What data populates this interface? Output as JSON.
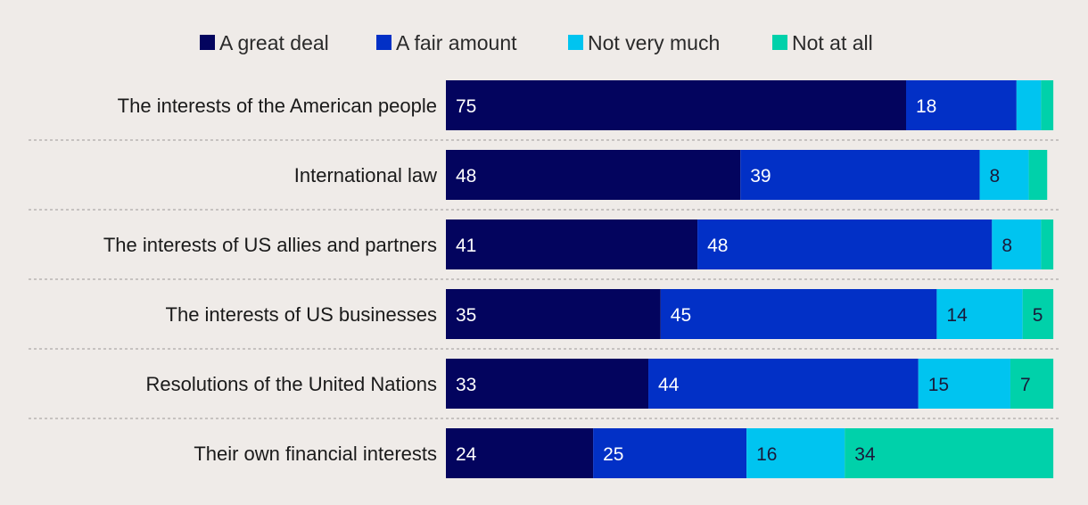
{
  "chart_data": {
    "type": "bar",
    "orientation": "horizontal",
    "stacked": true,
    "legend_position": "top-center",
    "grid": false,
    "xlim": [
      0,
      100
    ],
    "categories": [
      "The interests of the American people",
      "International law",
      "The interests of US allies and partners",
      "The interests of US businesses",
      "Resolutions of the United Nations",
      "Their own financial interests"
    ],
    "series": [
      {
        "name": "A great deal",
        "color": "#03045e",
        "label_color": "#ffffff",
        "values": [
          75,
          48,
          41,
          35,
          33,
          24
        ],
        "labels": [
          "75",
          "48",
          "41",
          "35",
          "33",
          "24"
        ]
      },
      {
        "name": "A fair amount",
        "color": "#0230c6",
        "label_color": "#ffffff",
        "values": [
          18,
          39,
          48,
          45,
          44,
          25
        ],
        "labels": [
          "18",
          "39",
          "48",
          "45",
          "44",
          "25"
        ]
      },
      {
        "name": "Not very much",
        "color": "#00c4f0",
        "label_color": "#1a1a3a",
        "values": [
          4,
          8,
          8,
          14,
          15,
          16
        ],
        "labels": [
          "",
          "8",
          "8",
          "14",
          "15",
          "16"
        ]
      },
      {
        "name": "Not at all",
        "color": "#00d1aa",
        "label_color": "#1a1a3a",
        "values": [
          2,
          3,
          2,
          5,
          7,
          34
        ],
        "labels": [
          "",
          "",
          "",
          "5",
          "7",
          "34"
        ]
      }
    ]
  }
}
